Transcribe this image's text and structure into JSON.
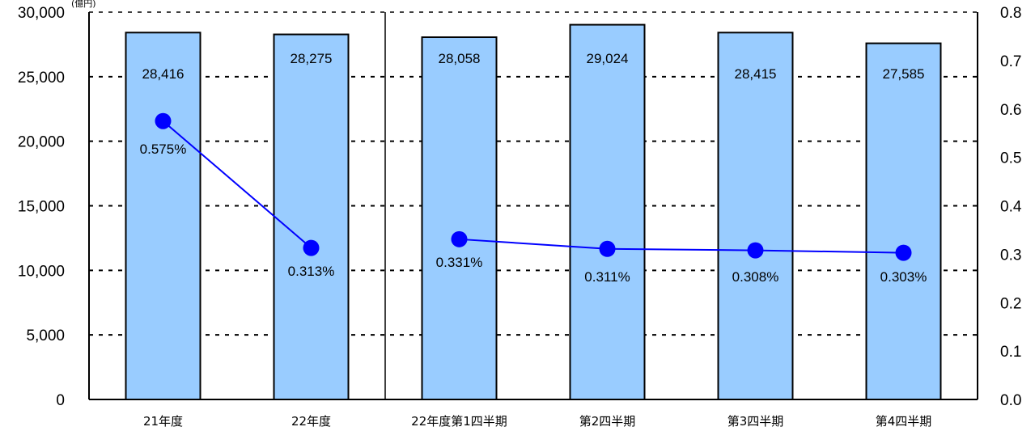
{
  "chart_data": {
    "type": "bar",
    "categories": [
      "21年度",
      "22年度",
      "22年度第1四半期",
      "第2四半期",
      "第3四半期",
      "第4四半期"
    ],
    "series": [
      {
        "type": "bar",
        "axis": "left",
        "values": [
          28416,
          28275,
          28058,
          29024,
          28415,
          27585
        ],
        "labels": [
          "28,416",
          "28,275",
          "28,058",
          "29,024",
          "28,415",
          "27,585"
        ],
        "color": "#99ccff"
      },
      {
        "type": "line",
        "axis": "right",
        "values": [
          0.575,
          0.313,
          0.331,
          0.311,
          0.308,
          0.303
        ],
        "labels": [
          "0.575%",
          "0.313%",
          "0.331%",
          "0.311%",
          "0.308%",
          "0.303%"
        ],
        "color": "#0000ff"
      }
    ],
    "y_left": {
      "ylim": [
        0,
        30000
      ],
      "ticks": [
        "0",
        "5,000",
        "10,000",
        "15,000",
        "20,000",
        "25,000",
        "30,000"
      ],
      "unit": "(億円)"
    },
    "y_right": {
      "ylim": [
        0,
        0.8
      ],
      "ticks": [
        "0.0",
        "0.1",
        "0.2",
        "0.3",
        "0.4",
        "0.5",
        "0.6",
        "0.7",
        "0.8"
      ]
    },
    "grid": "dotted-horizontal",
    "legend": "none"
  }
}
